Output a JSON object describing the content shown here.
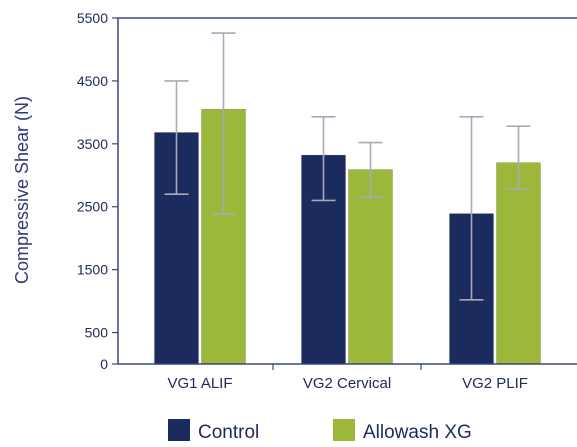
{
  "chart_data": {
    "type": "bar",
    "title": "",
    "xlabel": "",
    "ylabel": "Compressive Shear (N)",
    "ylim": [
      0,
      5500
    ],
    "yticks": [
      0,
      500,
      1500,
      2500,
      3500,
      4500,
      5500
    ],
    "categories": [
      "VG1 ALIF",
      "VG2 Cervical",
      "VG2 PLIF"
    ],
    "series": [
      {
        "name": "Control",
        "color": "#1c2b5e",
        "values": [
          3680,
          3320,
          2390
        ],
        "error_low": [
          2700,
          2600,
          1020
        ],
        "error_high": [
          4500,
          3930,
          3930
        ]
      },
      {
        "name": "Allowash XG",
        "color": "#9bb83b",
        "values": [
          4050,
          3090,
          3200
        ],
        "error_low": [
          2380,
          2650,
          2780
        ],
        "error_high": [
          5260,
          3520,
          3780
        ]
      }
    ],
    "grid": false,
    "legend": "bottom"
  }
}
